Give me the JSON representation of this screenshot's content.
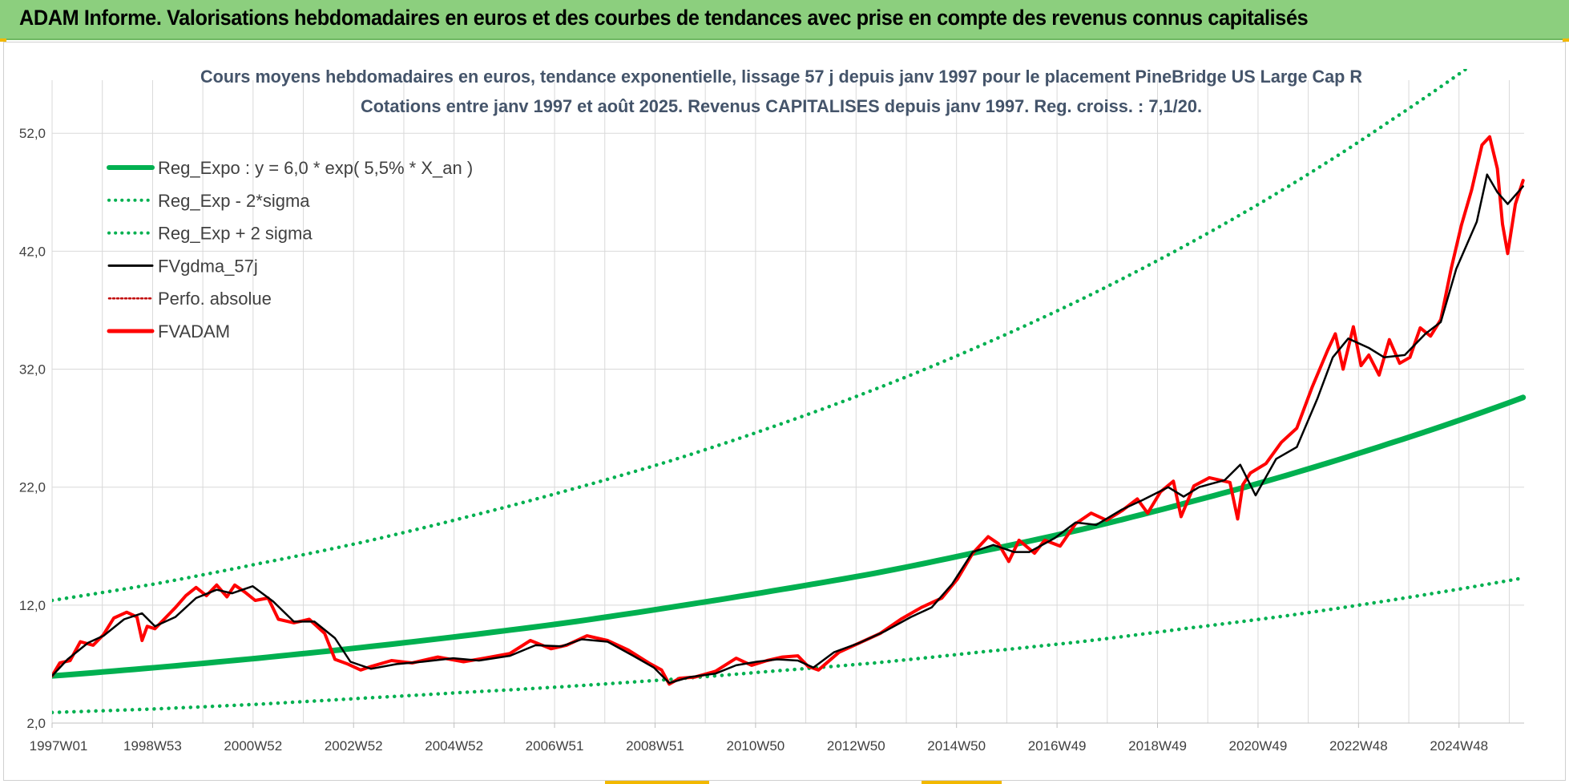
{
  "banner": {
    "title": "ADAM Informe. Valorisations hebdomadaires en euros et des courbes de tendances avec prise en compte des revenus connus capitalisés"
  },
  "colors": {
    "banner_bg": "#8ccf7e",
    "regression": "#00b050",
    "smoothed": "#000000",
    "fvadam": "#ff0000",
    "perfo": "#c00000",
    "grid": "#d9d9d9"
  },
  "chart_data": {
    "type": "line",
    "title": "Cours moyens hebdomadaires en euros, tendance exponentielle, lissage 57 j depuis janv 1997 pour le placement PineBridge US Large Cap R",
    "subtitle": "Cotations entre janv 1997 et août 2025. Revenus CAPITALISES depuis janv 1997. Reg. croiss. : 7,1/20.",
    "xlabel": "",
    "ylabel": "",
    "ylim": [
      2,
      56.5
    ],
    "yticks": [
      "2,0",
      "12,0",
      "22,0",
      "32,0",
      "42,0",
      "52,0"
    ],
    "xticks": [
      "1997W01",
      "1998W53",
      "2000W52",
      "2002W52",
      "2004W52",
      "2006W51",
      "2008W51",
      "2010W50",
      "2012W50",
      "2014W50",
      "2016W49",
      "2018W49",
      "2020W49",
      "2022W48",
      "2024W48"
    ],
    "xrange_years": [
      1997.0,
      2025.62
    ],
    "grid": true,
    "legend_position": "top-left",
    "legend": [
      "Reg_Expo : y = 6,0 * exp( 5,5% *  X_an )",
      "Reg_Exp - 2*sigma",
      "Reg_Exp + 2 sigma",
      "FVgdma_57j",
      "Perfo. absolue",
      "FVADAM"
    ],
    "series": [
      {
        "name": "Reg_Expo : y = 6,0 * exp( 5,5% *  X_an )",
        "style": "solid-thick",
        "x": [
          1997,
          1999,
          2001,
          2003,
          2005,
          2007,
          2009,
          2011,
          2013,
          2015,
          2017,
          2019,
          2021,
          2023,
          2025.6
        ],
        "values": [
          6.0,
          6.7,
          7.5,
          8.4,
          9.4,
          10.5,
          11.8,
          13.2,
          14.7,
          16.5,
          18.4,
          20.6,
          23.0,
          25.7,
          29.6
        ]
      },
      {
        "name": "Reg_Exp - 2*sigma",
        "style": "dotted",
        "x": [
          1997,
          1999,
          2001,
          2003,
          2005,
          2007,
          2009,
          2011,
          2013,
          2015,
          2017,
          2019,
          2021,
          2023,
          2025.6
        ],
        "values": [
          2.9,
          3.2,
          3.6,
          4.1,
          4.6,
          5.1,
          5.7,
          6.4,
          7.1,
          8.0,
          8.9,
          10.0,
          11.1,
          12.4,
          14.3
        ]
      },
      {
        "name": "Reg_Exp + 2 sigma",
        "style": "dotted",
        "x": [
          1997,
          1999,
          2001,
          2003,
          2005,
          2007,
          2009,
          2011,
          2013,
          2015,
          2017,
          2019,
          2021,
          2023,
          2025.6
        ],
        "values": [
          12.4,
          13.8,
          15.5,
          17.3,
          19.4,
          21.7,
          24.2,
          27.1,
          30.3,
          33.9,
          37.9,
          42.4,
          47.4,
          53.0,
          61.0
        ]
      },
      {
        "name": "FVgdma_57j",
        "style": "solid",
        "x": [
          1997.0,
          1997.3,
          1997.7,
          1998.0,
          1998.4,
          1998.75,
          1999.0,
          1999.4,
          1999.8,
          2000.2,
          2000.5,
          2000.9,
          2001.3,
          2001.7,
          2002.1,
          2002.5,
          2002.8,
          2003.2,
          2003.7,
          2004.2,
          2004.8,
          2005.3,
          2005.9,
          2006.4,
          2006.9,
          2007.3,
          2007.8,
          2008.3,
          2008.7,
          2009.0,
          2009.4,
          2009.9,
          2010.3,
          2010.7,
          2011.1,
          2011.5,
          2011.8,
          2012.2,
          2012.7,
          2013.2,
          2013.7,
          2014.1,
          2014.5,
          2014.9,
          2015.3,
          2015.7,
          2016.0,
          2016.5,
          2016.9,
          2017.3,
          2017.8,
          2018.2,
          2018.7,
          2019.0,
          2019.3,
          2019.8,
          2020.1,
          2020.4,
          2020.8,
          2021.2,
          2021.6,
          2021.9,
          2022.2,
          2022.6,
          2022.9,
          2023.3,
          2023.7,
          2024.0,
          2024.3,
          2024.7,
          2024.9,
          2025.1,
          2025.3,
          2025.6
        ],
        "values": [
          6.0,
          7.4,
          8.8,
          9.4,
          10.8,
          11.3,
          10.2,
          11.0,
          12.6,
          13.3,
          13.0,
          13.6,
          12.3,
          10.6,
          10.6,
          9.2,
          7.2,
          6.6,
          7.0,
          7.2,
          7.5,
          7.3,
          7.7,
          8.6,
          8.5,
          9.1,
          8.9,
          7.7,
          6.7,
          5.4,
          5.9,
          6.2,
          6.9,
          7.2,
          7.4,
          7.3,
          6.7,
          8.0,
          8.8,
          9.8,
          11.0,
          11.8,
          13.8,
          16.5,
          17.1,
          16.5,
          16.5,
          17.7,
          19.0,
          18.8,
          20.1,
          20.9,
          22.0,
          21.2,
          22.0,
          22.6,
          23.9,
          21.3,
          24.4,
          25.4,
          29.5,
          33.0,
          34.6,
          33.8,
          33.0,
          33.2,
          35.0,
          36.0,
          40.5,
          44.5,
          48.5,
          47.0,
          46.0,
          47.5
        ]
      },
      {
        "name": "FVADAM",
        "style": "solid-thick",
        "x": [
          1997.0,
          1997.15,
          1997.35,
          1997.55,
          1997.8,
          1998.0,
          1998.2,
          1998.45,
          1998.65,
          1998.75,
          1998.85,
          1999.0,
          1999.2,
          1999.4,
          1999.6,
          1999.8,
          2000.0,
          2000.2,
          2000.4,
          2000.55,
          2000.75,
          2000.95,
          2001.2,
          2001.4,
          2001.7,
          2002.0,
          2002.3,
          2002.5,
          2002.75,
          2003.0,
          2003.2,
          2003.6,
          2004.0,
          2004.5,
          2005.0,
          2005.4,
          2005.9,
          2006.3,
          2006.7,
          2007.0,
          2007.4,
          2007.8,
          2008.2,
          2008.6,
          2008.85,
          2009.0,
          2009.2,
          2009.5,
          2009.9,
          2010.3,
          2010.6,
          2010.9,
          2011.2,
          2011.5,
          2011.7,
          2011.9,
          2012.3,
          2012.7,
          2013.1,
          2013.5,
          2013.9,
          2014.3,
          2014.6,
          2014.9,
          2015.2,
          2015.4,
          2015.6,
          2015.8,
          2016.1,
          2016.3,
          2016.6,
          2016.9,
          2017.2,
          2017.5,
          2017.8,
          2018.1,
          2018.3,
          2018.55,
          2018.8,
          2018.95,
          2019.2,
          2019.5,
          2019.9,
          2020.05,
          2020.15,
          2020.3,
          2020.6,
          2020.9,
          2021.2,
          2021.5,
          2021.8,
          2021.95,
          2022.1,
          2022.3,
          2022.45,
          2022.6,
          2022.8,
          2023.0,
          2023.2,
          2023.4,
          2023.6,
          2023.8,
          2024.0,
          2024.2,
          2024.4,
          2024.6,
          2024.8,
          2024.95,
          2025.1,
          2025.2,
          2025.3,
          2025.45,
          2025.6
        ],
        "values": [
          6.0,
          7.1,
          7.3,
          8.9,
          8.6,
          9.5,
          10.9,
          11.4,
          11.0,
          9.0,
          10.2,
          10.0,
          10.9,
          11.8,
          12.8,
          13.5,
          12.8,
          13.7,
          12.7,
          13.7,
          13.1,
          12.4,
          12.6,
          10.8,
          10.5,
          10.8,
          9.6,
          7.4,
          7.0,
          6.5,
          6.8,
          7.3,
          7.1,
          7.6,
          7.2,
          7.5,
          7.9,
          9.0,
          8.3,
          8.6,
          9.4,
          9.0,
          8.2,
          7.1,
          6.5,
          5.3,
          5.8,
          5.9,
          6.4,
          7.5,
          6.9,
          7.3,
          7.6,
          7.7,
          6.8,
          6.5,
          8.0,
          8.8,
          9.6,
          10.8,
          11.8,
          12.6,
          14.2,
          16.4,
          17.8,
          17.2,
          15.7,
          17.5,
          16.4,
          17.5,
          17.0,
          18.9,
          19.8,
          19.2,
          20.0,
          21.0,
          19.8,
          21.6,
          22.5,
          19.5,
          22.1,
          22.8,
          22.4,
          19.3,
          22.2,
          23.2,
          24.0,
          25.8,
          27.0,
          30.5,
          33.6,
          35.0,
          32.0,
          35.6,
          32.3,
          33.2,
          31.5,
          34.5,
          32.5,
          33.0,
          35.5,
          34.8,
          36.2,
          40.5,
          44.2,
          47.2,
          51.0,
          51.7,
          49.0,
          44.3,
          41.8,
          46.0,
          48.0
        ]
      }
    ]
  }
}
